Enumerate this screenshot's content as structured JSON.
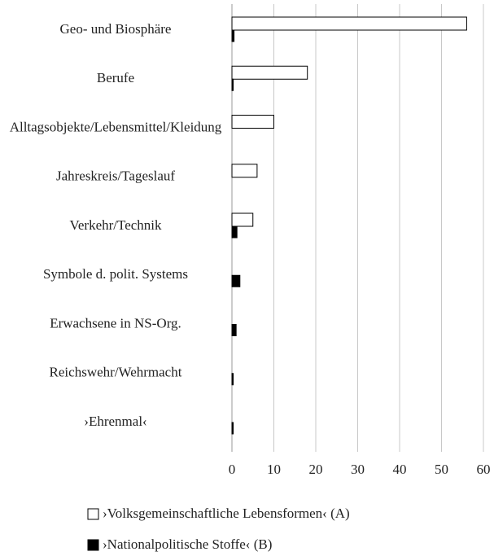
{
  "chart_data": {
    "type": "barh",
    "categories": [
      "Geo- und Biosphäre",
      "Berufe",
      "Alltagsobjekte/Lebensmittel/Kleidung",
      "Jahreskreis/Tageslauf",
      "Verkehr/Technik",
      "Symbole d. polit. Systems",
      "Erwachsene in NS-Org.",
      "Reichswehr/Wehrmacht",
      "›Ehrenmal‹"
    ],
    "series": [
      {
        "name": "›Volksgemeinschaftliche Lebensformen‹ (A)",
        "color": "#ffffff",
        "values": [
          56,
          18,
          10,
          6,
          5,
          0,
          0,
          0,
          0
        ]
      },
      {
        "name": "›Nationalpolitische Stoffe‹ (B)",
        "color": "#000000",
        "values": [
          0.5,
          0.3,
          0,
          0,
          1.2,
          1.9,
          1,
          0.3,
          0.3
        ]
      }
    ],
    "xlim": [
      0,
      60
    ],
    "xticks": [
      0,
      10,
      20,
      30,
      40,
      50,
      60
    ],
    "grid": true
  }
}
